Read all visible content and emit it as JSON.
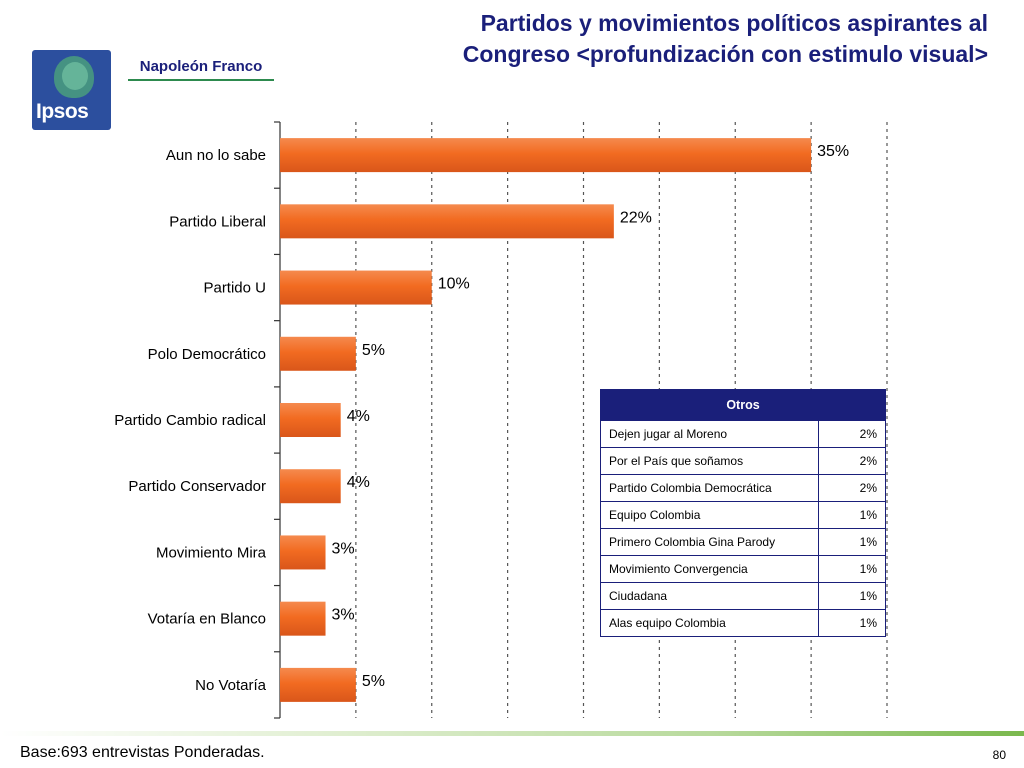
{
  "header": {
    "title_line1": "Partidos y movimientos políticos aspirantes al",
    "title_line2": "Congreso <profundización con estimulo visual>",
    "logo_text": "Ipsos",
    "brand_text": "Napoleón Franco"
  },
  "chart_data": {
    "type": "bar",
    "orientation": "horizontal",
    "categories": [
      "Aun no lo sabe",
      "Partido Liberal",
      "Partido U",
      "Polo Democrático",
      "Partido Cambio radical",
      "Partido Conservador",
      "Movimiento Mira",
      "Votaría en Blanco",
      "No Votaría"
    ],
    "values": [
      35,
      22,
      10,
      5,
      4,
      4,
      3,
      3,
      5
    ],
    "value_labels": [
      "35%",
      "22%",
      "10%",
      "5%",
      "4%",
      "4%",
      "3%",
      "3%",
      "5%"
    ],
    "xlim": [
      0,
      40
    ],
    "grid": true,
    "bar_color": "#f26b21"
  },
  "otros_table": {
    "header": "Otros",
    "rows": [
      {
        "name": "Dejen jugar al Moreno",
        "pct": "2%"
      },
      {
        "name": "Por el País que soñamos",
        "pct": "2%"
      },
      {
        "name": "Partido Colombia Democrática",
        "pct": "2%"
      },
      {
        "name": "Equipo Colombia",
        "pct": "1%"
      },
      {
        "name": "Primero Colombia Gina Parody",
        "pct": "1%"
      },
      {
        "name": "Movimiento Convergencia",
        "pct": "1%"
      },
      {
        "name": "Ciudadana",
        "pct": "1%"
      },
      {
        "name": "Alas equipo Colombia",
        "pct": "1%"
      }
    ]
  },
  "footer": {
    "base_text": "Base:693 entrevistas Ponderadas.",
    "page_number": "80"
  }
}
